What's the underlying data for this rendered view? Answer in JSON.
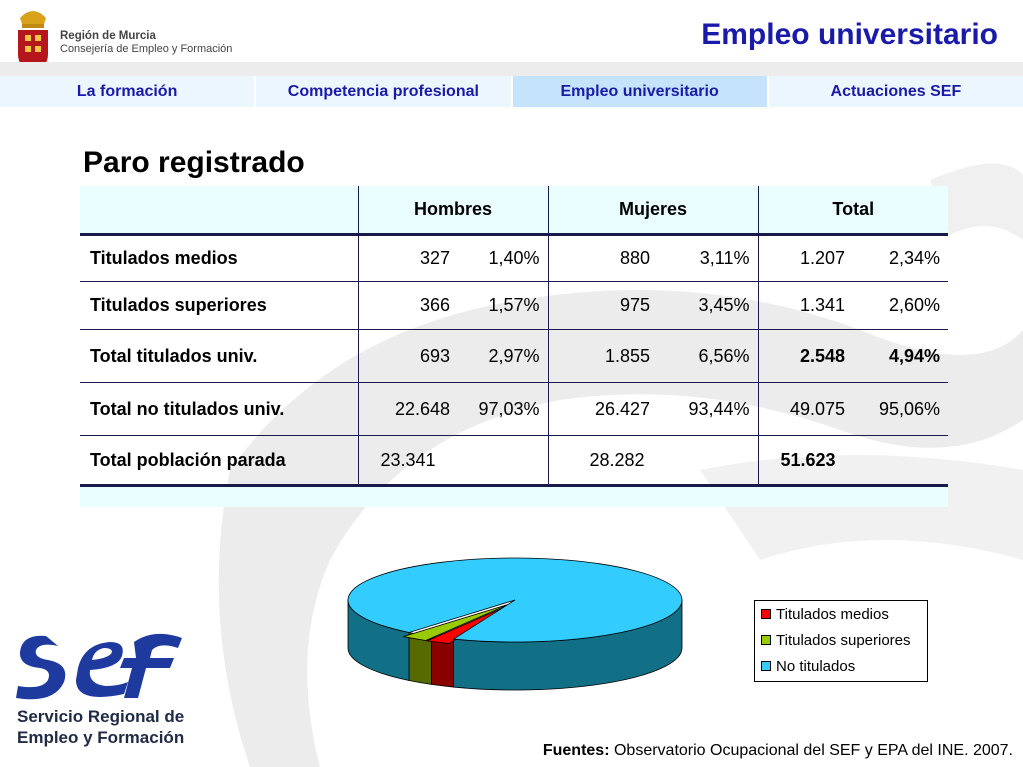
{
  "colors": {
    "accent": "#1a1aa8",
    "nav_active": "#c5e4fb",
    "pie_titulados_medios": "#ff0000",
    "pie_titulados_superiores": "#99cc00",
    "pie_no_titulados": "#33ccff"
  },
  "header": {
    "org_line1": "Región de Murcia",
    "org_line2": "Consejería de Empleo y Formación",
    "page_title": "Empleo universitario"
  },
  "nav": {
    "tabs": [
      {
        "label": "La formación"
      },
      {
        "label": "Competencia profesional"
      },
      {
        "label": "Empleo universitario"
      },
      {
        "label": "Actuaciones SEF"
      }
    ],
    "active_index": 2
  },
  "section_title": "Paro registrado",
  "table": {
    "headers": [
      "",
      "Hombres",
      "Mujeres",
      "Total"
    ],
    "rows": [
      {
        "label": "Titulados medios",
        "h_num": "327",
        "h_pct": "1,40%",
        "m_num": "880",
        "m_pct": "3,11%",
        "t_num": "1.207",
        "t_pct": "2,34%"
      },
      {
        "label": "Titulados superiores",
        "h_num": "366",
        "h_pct": "1,57%",
        "m_num": "975",
        "m_pct": "3,45%",
        "t_num": "1.341",
        "t_pct": "2,60%"
      },
      {
        "label": "Total titulados univ.",
        "h_num": "693",
        "h_pct": "2,97%",
        "m_num": "1.855",
        "m_pct": "6,56%",
        "t_num": "2.548",
        "t_pct": "4,94%"
      },
      {
        "label": "Total no titulados univ.",
        "h_num": "22.648",
        "h_pct": "97,03%",
        "m_num": "26.427",
        "m_pct": "93,44%",
        "t_num": "49.075",
        "t_pct": "95,06%"
      },
      {
        "label": "Total población parada",
        "h_num": "23.341",
        "h_pct": "",
        "m_num": "28.282",
        "m_pct": "",
        "t_num": "51.623",
        "t_pct": ""
      }
    ]
  },
  "chart_data": {
    "type": "pie",
    "categories": [
      "Titulados medios",
      "Titulados superiores",
      "No titulados"
    ],
    "values": [
      2.34,
      2.6,
      95.06
    ],
    "legend_position": "right"
  },
  "footer": {
    "logo_line1": "Servicio Regional de",
    "logo_line2": "Empleo y Formación",
    "sources_label": "Fuentes:",
    "sources_text": "Observatorio Ocupacional del SEF y EPA del INE. 2007."
  }
}
